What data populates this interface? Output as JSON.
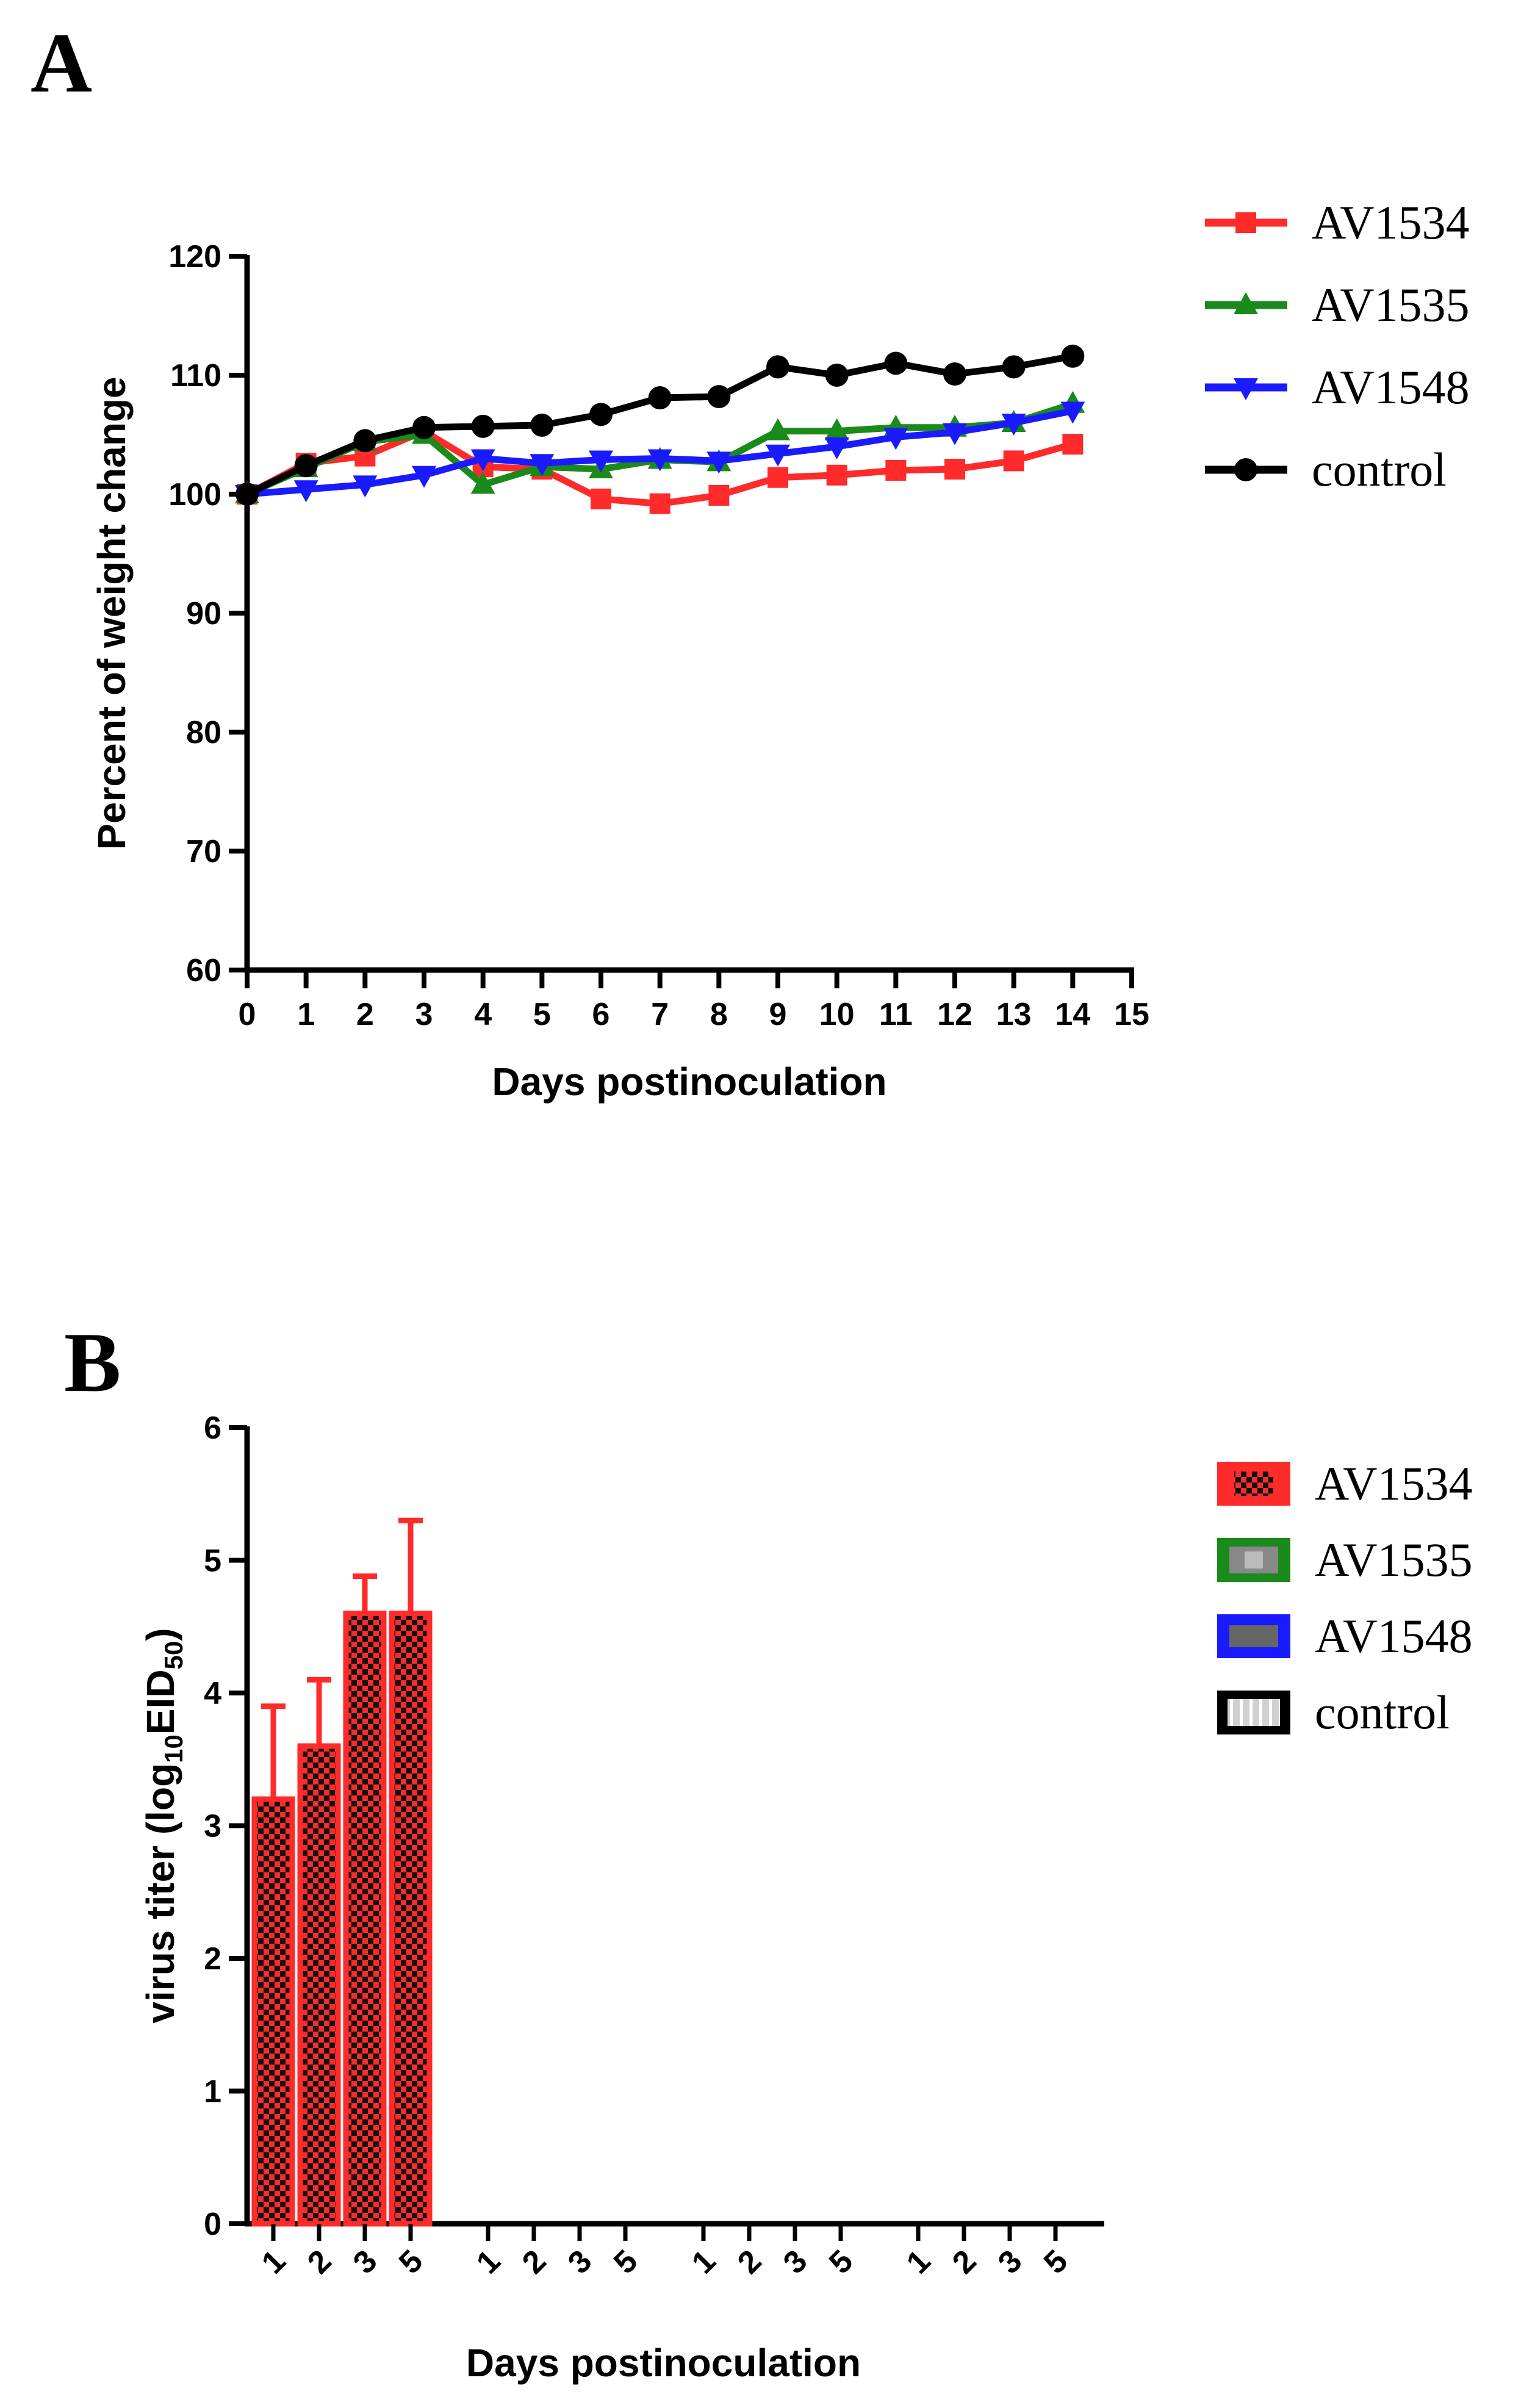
{
  "chart_data": [
    {
      "panel": "A",
      "type": "line",
      "xlabel": "Days postinoculation",
      "ylabel": "Percent of weight change",
      "xlim": [
        0,
        15
      ],
      "ylim": [
        60,
        120
      ],
      "xticks": [
        "0",
        "1",
        "2",
        "3",
        "4",
        "5",
        "6",
        "7",
        "8",
        "9",
        "10",
        "11",
        "12",
        "13",
        "14",
        "15"
      ],
      "yticks": [
        "60",
        "70",
        "80",
        "90",
        "100",
        "110",
        "120"
      ],
      "legend": "right",
      "grid": false,
      "x": [
        0,
        1,
        2,
        3,
        4,
        5,
        6,
        7,
        8,
        9,
        10,
        11,
        12,
        13,
        14
      ],
      "series": [
        {
          "name": "AV1534",
          "color": "#ff2a2a",
          "marker": "square",
          "values": [
            100,
            102.6,
            103.2,
            105.3,
            102.3,
            102.1,
            99.6,
            99.2,
            99.9,
            101.4,
            101.6,
            102.0,
            102.1,
            102.8,
            104.2
          ]
        },
        {
          "name": "AV1535",
          "color": "#1a8a1a",
          "marker": "triangle-up",
          "values": [
            100,
            102.2,
            104.4,
            105.0,
            100.8,
            102.3,
            102.1,
            102.9,
            102.7,
            105.3,
            105.3,
            105.6,
            105.6,
            106.0,
            107.6
          ]
        },
        {
          "name": "AV1548",
          "color": "#1a1aff",
          "marker": "triangle-down",
          "values": [
            100,
            100.4,
            100.8,
            101.6,
            103.0,
            102.6,
            102.9,
            103.0,
            102.8,
            103.4,
            104.0,
            104.8,
            105.2,
            106.0,
            107.0
          ]
        },
        {
          "name": "control",
          "color": "#000000",
          "marker": "circle",
          "values": [
            100,
            102.4,
            104.5,
            105.6,
            105.7,
            105.8,
            106.7,
            108.1,
            108.2,
            110.7,
            110.0,
            111.0,
            110.1,
            110.7,
            111.6
          ]
        }
      ]
    },
    {
      "panel": "B",
      "type": "bar",
      "xlabel": "Days postinoculation",
      "ylabel": "virus titer (log",
      "ylabel_sub1": "10",
      "ylabel_mid": "EID",
      "ylabel_sub2": "50",
      "ylabel_end": ")",
      "ylim": [
        0,
        6
      ],
      "yticks": [
        "0",
        "1",
        "2",
        "3",
        "4",
        "5",
        "6"
      ],
      "legend": "right",
      "grid": false,
      "groups": [
        {
          "name": "AV1534",
          "color": "#ff2a2a",
          "pattern": "checker",
          "categories": [
            "1",
            "2",
            "3",
            "5"
          ],
          "values": [
            3.2,
            3.6,
            4.6,
            4.6
          ],
          "errors": [
            0.7,
            0.5,
            0.28,
            0.7
          ]
        },
        {
          "name": "AV1535",
          "color": "#1a8a1a",
          "pattern": "grey-block",
          "categories": [
            "1",
            "2",
            "3",
            "5"
          ],
          "values": [
            0,
            0,
            0,
            0
          ],
          "errors": [
            0,
            0,
            0,
            0
          ]
        },
        {
          "name": "AV1548",
          "color": "#1a1aff",
          "pattern": "grey-bar",
          "categories": [
            "1",
            "2",
            "3",
            "5"
          ],
          "values": [
            0,
            0,
            0,
            0
          ],
          "errors": [
            0,
            0,
            0,
            0
          ]
        },
        {
          "name": "control",
          "color": "#000000",
          "pattern": "vertical-stripes",
          "categories": [
            "1",
            "2",
            "3",
            "5"
          ],
          "values": [
            0,
            0,
            0,
            0
          ],
          "errors": [
            0,
            0,
            0,
            0
          ]
        }
      ]
    }
  ]
}
